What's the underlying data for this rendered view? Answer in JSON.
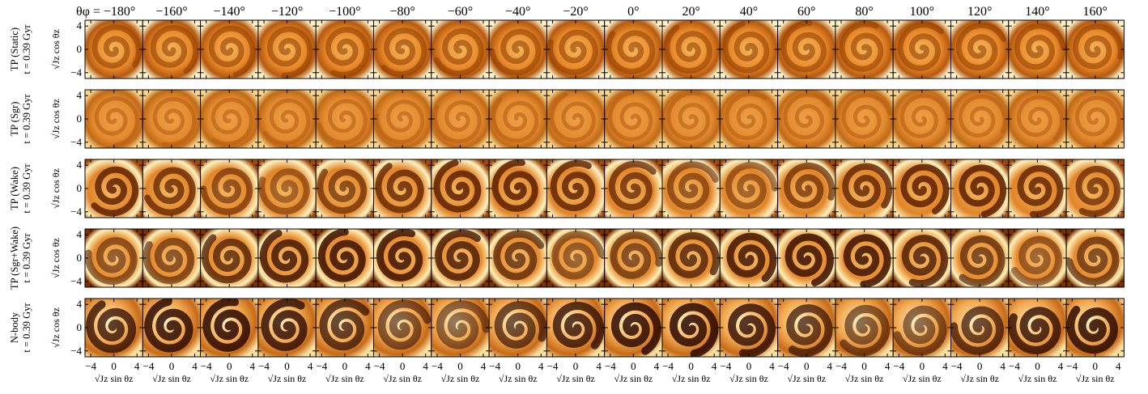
{
  "figure": {
    "column_titles": [
      "θφ = −180°",
      "−160°",
      "−140°",
      "−120°",
      "−100°",
      "−80°",
      "−60°",
      "−40°",
      "−20°",
      "0°",
      "20°",
      "40°",
      "60°",
      "80°",
      "100°",
      "120°",
      "140°",
      "160°"
    ],
    "row_labels": [
      {
        "model": "TP (Static)",
        "time": "t = 0.39 Gyr"
      },
      {
        "model": "TP (Sgr)",
        "time": "t = 0.39 Gyr"
      },
      {
        "model": "TP (Wake)",
        "time": "t = 0.39 Gyr"
      },
      {
        "model": "TP (Sgr+Wake)",
        "time": "t = 0.39 Gyr"
      },
      {
        "model": "N-body",
        "time": "t = 0.39 Gyr"
      }
    ],
    "xlabel": "√Jz sin θz",
    "ylabel": "√Jz cos θz",
    "xlim": [
      -5,
      5
    ],
    "ylim": [
      -5,
      5
    ],
    "xticks": [
      {
        "value": -4,
        "label": "−4"
      },
      0,
      4
    ],
    "yticks": [
      {
        "value": -4,
        "label": "−4"
      },
      0,
      4
    ]
  }
}
